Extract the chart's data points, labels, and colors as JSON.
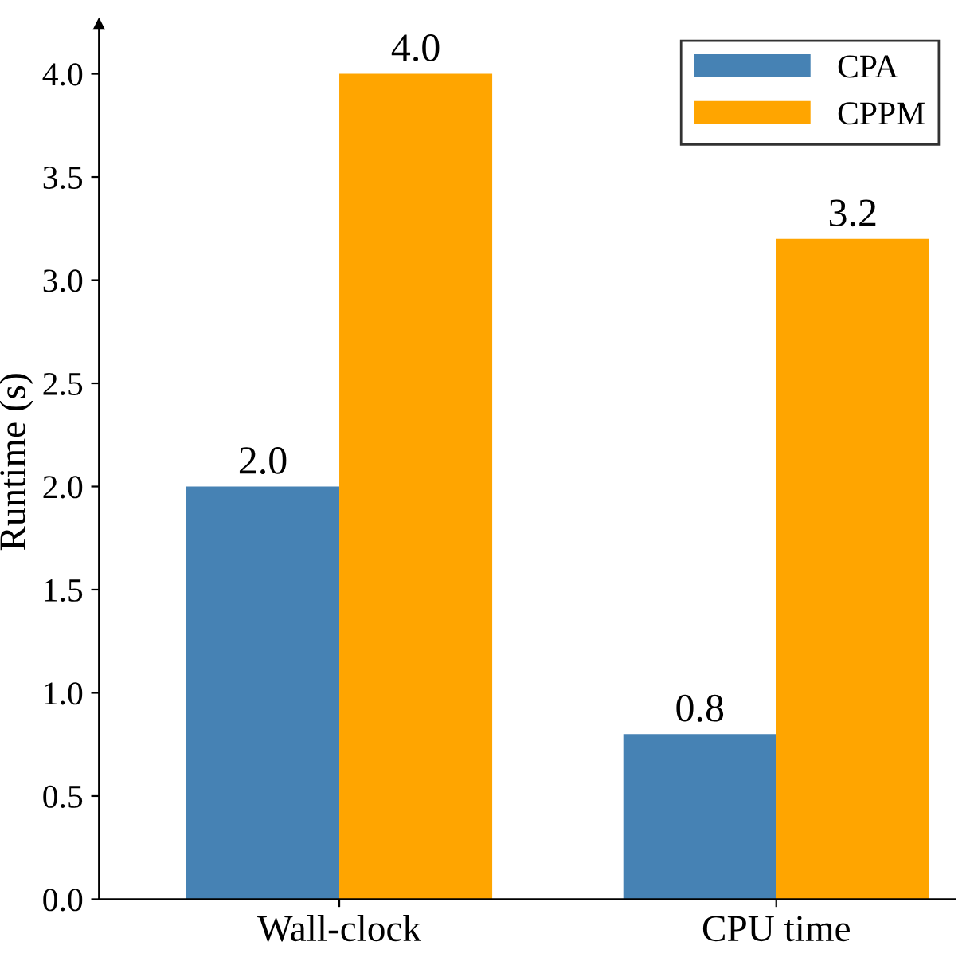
{
  "chart_data": {
    "type": "bar",
    "ylabel": "Runtime (s)",
    "categories": [
      "Wall-clock",
      "CPU time"
    ],
    "series": [
      {
        "name": "CPA",
        "color": "#4682b4",
        "values": [
          2.0,
          0.8
        ],
        "value_labels": [
          "2.0",
          "0.8"
        ]
      },
      {
        "name": "CPPM",
        "color": "#ffa500",
        "values": [
          4.0,
          3.2
        ],
        "value_labels": [
          "4.0",
          "3.2"
        ]
      }
    ],
    "ylim": [
      0,
      4.24
    ],
    "yticks": [
      {
        "value": 0,
        "label": "0.0"
      },
      {
        "value": 0.5,
        "label": "0.5"
      },
      {
        "value": 1,
        "label": "1.0"
      },
      {
        "value": 1.5,
        "label": "1.5"
      },
      {
        "value": 2,
        "label": "2.0"
      },
      {
        "value": 2.5,
        "label": "2.5"
      },
      {
        "value": 3,
        "label": "3.0"
      },
      {
        "value": 3.5,
        "label": "3.5"
      },
      {
        "value": 4,
        "label": "4.0"
      }
    ],
    "legend": "top right",
    "grid": false
  }
}
